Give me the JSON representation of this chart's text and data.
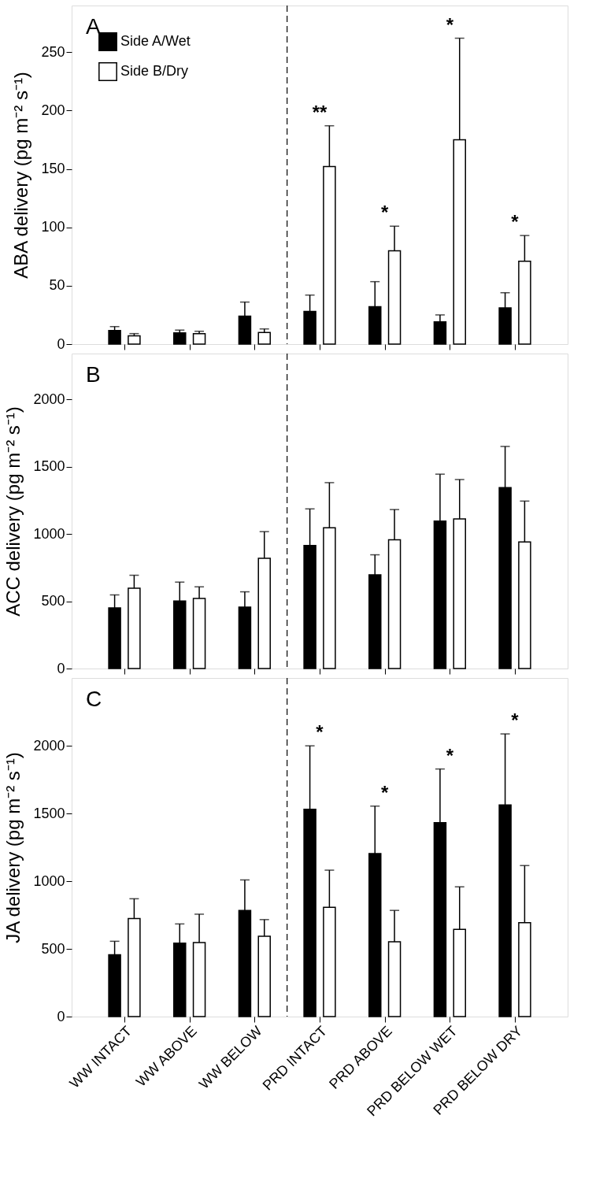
{
  "chart_data": [
    {
      "type": "bar",
      "title": "A",
      "ylabel": "ABA delivery  (pg m⁻² s⁻¹)",
      "categories": [
        null,
        null,
        null,
        null,
        null,
        null,
        null
      ],
      "series": [
        {
          "name": "Side A/Wet",
          "color": "#000000",
          "values": [
            11.6,
            9.6,
            24,
            28,
            32,
            19,
            31
          ],
          "errors": [
            [
              11.6,
              15
            ],
            [
              9.6,
              12
            ],
            [
              24,
              36
            ],
            [
              28,
              42
            ],
            [
              32,
              53.5
            ],
            [
              19,
              25
            ],
            [
              31,
              44
            ]
          ]
        },
        {
          "name": "Side B/Dry",
          "color": "#ffffff",
          "values": [
            7,
            9,
            10,
            152,
            80,
            175,
            71
          ],
          "errors": [
            [
              7,
              9
            ],
            [
              9,
              11
            ],
            [
              10,
              13
            ],
            [
              152,
              187
            ],
            [
              80,
              101
            ],
            [
              175,
              262
            ],
            [
              71,
              93
            ]
          ]
        }
      ],
      "ylim": [
        0,
        290
      ],
      "yticks": [
        0,
        50,
        100,
        150,
        200,
        250
      ],
      "annotations": [
        "**",
        "*",
        "*",
        "*"
      ],
      "legend": "top left",
      "grid": false,
      "tick_labels": "y"
    },
    {
      "type": "bar",
      "title": "B",
      "ylabel": "ACC delivery (pg m⁻² s⁻¹)",
      "categories": [
        null,
        null,
        null,
        null,
        null,
        null,
        null
      ],
      "series": [
        {
          "color": "#000000",
          "values": [
            450,
            501,
            456,
            914,
            696,
            1095,
            1344
          ],
          "errors": [
            [
              450,
              547
            ],
            [
              501,
              642
            ],
            [
              456,
              570
            ],
            [
              914,
              1186
            ],
            [
              696,
              845
            ],
            [
              1095,
              1444
            ],
            [
              1344,
              1650
            ]
          ]
        },
        {
          "color": "#ffffff",
          "values": [
            596,
            521,
            819,
            1046,
            957,
            1112,
            940
          ],
          "errors": [
            [
              596,
              693
            ],
            [
              521,
              607
            ],
            [
              819,
              1017
            ],
            [
              1046,
              1381
            ],
            [
              957,
              1181
            ],
            [
              1112,
              1404
            ],
            [
              940,
              1244
            ]
          ]
        }
      ],
      "ylim": [
        0,
        2340
      ],
      "yticks": [
        0,
        500,
        1000,
        1500,
        2000
      ],
      "grid": false,
      "tick_labels": "y"
    },
    {
      "type": "bar",
      "title": "C",
      "ylabel": "JA delivery (pg m⁻² s⁻¹)",
      "categories": [
        "WW INTACT",
        "WW ABOVE",
        "WW BELOW",
        "PRD INTACT",
        "PRD ABOVE",
        "PRD BELOW WET",
        "PRD BELOW DRY"
      ],
      "series": [
        {
          "color": "#000000",
          "values": [
            456,
            542,
            784,
            1531,
            1203,
            1431,
            1563
          ],
          "errors": [
            [
              456,
              556
            ],
            [
              542,
              684
            ],
            [
              784,
              1009
            ],
            [
              1531,
              1999
            ],
            [
              1203,
              1554
            ],
            [
              1431,
              1828
            ],
            [
              1563,
              2087
            ]
          ]
        },
        {
          "color": "#ffffff",
          "values": [
            724,
            547,
            593,
            807,
            553,
            644,
            693
          ],
          "errors": [
            [
              724,
              870
            ],
            [
              547,
              756
            ],
            [
              593,
              716
            ],
            [
              807,
              1081
            ],
            [
              553,
              784
            ],
            [
              644,
              958
            ],
            [
              693,
              1115
            ]
          ]
        }
      ],
      "ylim": [
        0,
        2500
      ],
      "yticks": [
        0,
        500,
        1000,
        1500,
        2000
      ],
      "annotations": [
        "*",
        "*",
        "*",
        "*"
      ],
      "grid": false
    }
  ]
}
